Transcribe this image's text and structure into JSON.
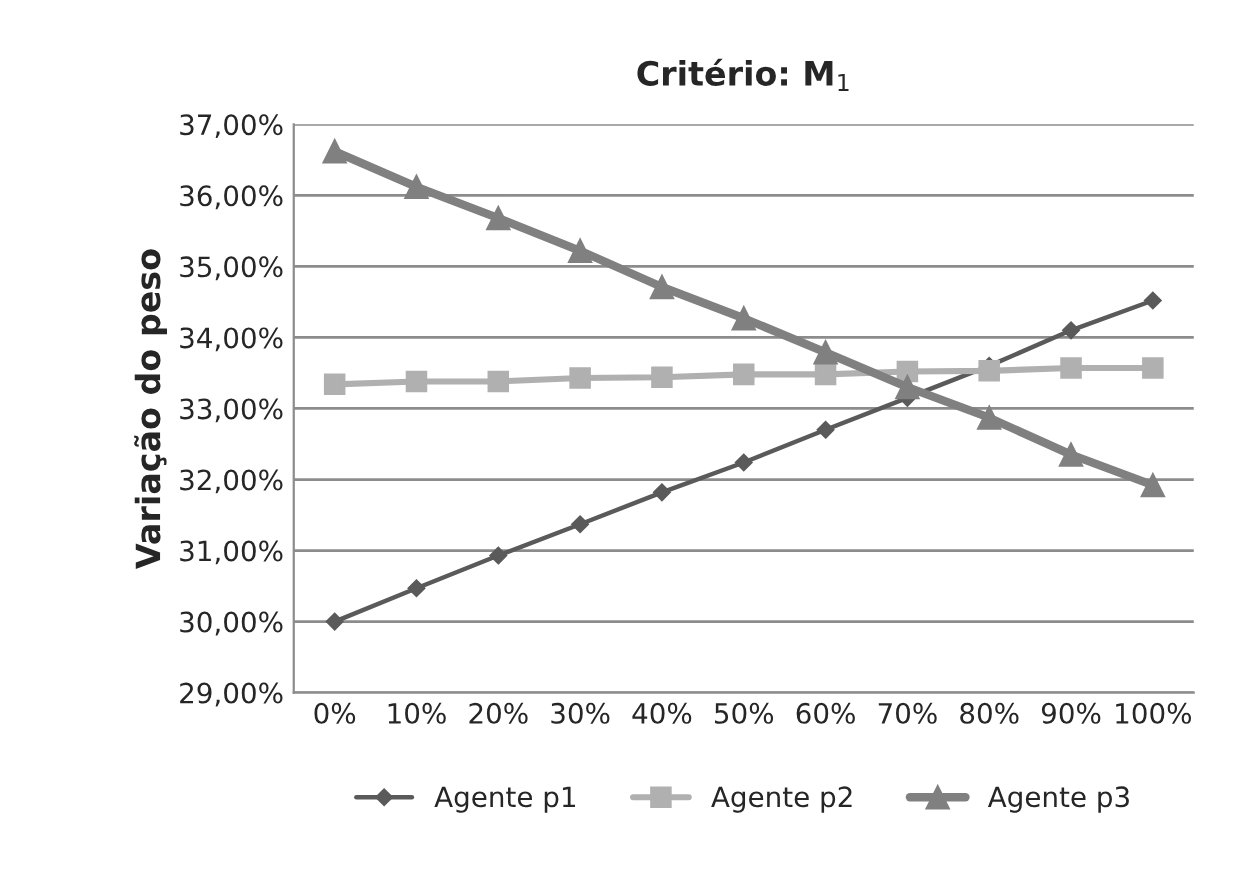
{
  "chart_data": {
    "type": "line",
    "title": "Critério: M$_{1}$",
    "ylabel": "Variação do peso",
    "categories": [
      "0%",
      "10%",
      "20%",
      "30%",
      "40%",
      "50%",
      "60%",
      "70%",
      "80%",
      "90%",
      "100%"
    ],
    "series": [
      {
        "name": "Agente p1",
        "color": "#5a5a5a",
        "marker": "diamond",
        "values": [
          30.0,
          30.47,
          30.93,
          31.37,
          31.82,
          32.24,
          32.7,
          33.15,
          33.6,
          34.1,
          34.52
        ]
      },
      {
        "name": "Agente p2",
        "color": "#b0b0b0",
        "marker": "square",
        "values": [
          33.34,
          33.38,
          33.38,
          33.43,
          33.44,
          33.48,
          33.48,
          33.52,
          33.53,
          33.57,
          33.57
        ]
      },
      {
        "name": "Agente p3",
        "color": "#808080",
        "marker": "triangle",
        "values": [
          36.62,
          36.12,
          35.68,
          35.22,
          34.71,
          34.27,
          33.79,
          33.3,
          32.87,
          32.35,
          31.92
        ]
      }
    ],
    "ylim": [
      29,
      37
    ],
    "yticks": [
      {
        "value": 29,
        "label": "29,00%"
      },
      {
        "value": 30,
        "label": "30,00%"
      },
      {
        "value": 31,
        "label": "31,00%"
      },
      {
        "value": 32,
        "label": "32,00%"
      },
      {
        "value": 33,
        "label": "33,00%"
      },
      {
        "value": 34,
        "label": "34,00%"
      },
      {
        "value": 35,
        "label": "35,00%"
      },
      {
        "value": 36,
        "label": "36,00%"
      },
      {
        "value": 37,
        "label": "37,00%"
      }
    ],
    "grid": "y",
    "legend": "bottom"
  }
}
